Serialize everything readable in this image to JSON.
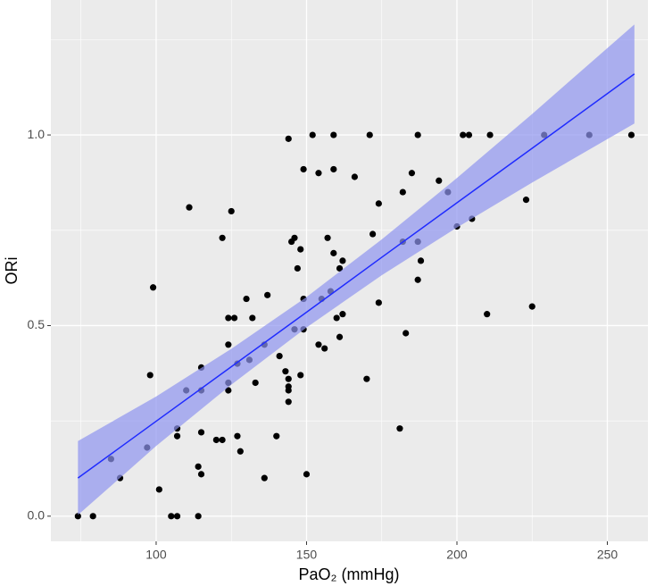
{
  "chart_data": {
    "type": "scatter",
    "x_label": "PaO₂ (mmHg)",
    "y_label": "ORi",
    "xlim": [
      65,
      263.5
    ],
    "ylim": [
      -0.066,
      1.354
    ],
    "xticks": [
      100,
      150,
      200,
      250
    ],
    "yticks": [
      {
        "value": 0,
        "label": "0.0"
      },
      {
        "value": 0.5,
        "label": "0.5"
      },
      {
        "value": 1,
        "label": "1.0"
      }
    ],
    "x_minor_grid": [
      75,
      125,
      175,
      225
    ],
    "y_minor_grid": [
      0.25,
      0.75,
      1.25
    ],
    "grid": true,
    "point_color": "#000000",
    "x": [
      74,
      79,
      85,
      88,
      98,
      99,
      97,
      101,
      105,
      107,
      107,
      107,
      110,
      111,
      114,
      114,
      115,
      115,
      115,
      115,
      120,
      122,
      122,
      125,
      124,
      126,
      124,
      124,
      124,
      127,
      127,
      128,
      130,
      131,
      132,
      133,
      136,
      136,
      137,
      140,
      141,
      143,
      144,
      144,
      144,
      144,
      144,
      145,
      146,
      146,
      147,
      148,
      149,
      148,
      149,
      149,
      150,
      152,
      154,
      154,
      155,
      156,
      157,
      158,
      159,
      159,
      159,
      160,
      161,
      161,
      162,
      162,
      166,
      170,
      171,
      172,
      174,
      174,
      181,
      182,
      182,
      183,
      185,
      187,
      187,
      187,
      188,
      194,
      197,
      200,
      202,
      204,
      205,
      210,
      211,
      223,
      225,
      229,
      244,
      258
    ],
    "values": [
      0,
      0,
      0.15,
      0.1,
      0.37,
      0.6,
      0.18,
      0.07,
      0,
      0,
      0.23,
      0.21,
      0.33,
      0.81,
      0.13,
      0,
      0.11,
      0.22,
      0.39,
      0.33,
      0.2,
      0.2,
      0.73,
      0.8,
      0.52,
      0.52,
      0.45,
      0.35,
      0.33,
      0.21,
      0.4,
      0.17,
      0.57,
      0.41,
      0.52,
      0.35,
      0.45,
      0.1,
      0.58,
      0.21,
      0.42,
      0.38,
      0.99,
      0.36,
      0.34,
      0.33,
      0.3,
      0.72,
      0.73,
      0.49,
      0.65,
      0.37,
      0.91,
      0.7,
      0.49,
      0.57,
      0.11,
      1.0,
      0.9,
      0.45,
      0.57,
      0.44,
      0.73,
      0.59,
      1.0,
      0.91,
      0.69,
      0.52,
      0.65,
      0.47,
      0.67,
      0.53,
      0.89,
      0.36,
      1.0,
      0.74,
      0.82,
      0.56,
      0.23,
      0.85,
      0.72,
      0.48,
      0.9,
      1.0,
      0.72,
      0.62,
      0.67,
      0.88,
      0.85,
      0.76,
      1.0,
      1.0,
      0.78,
      0.53,
      1.0,
      0.83,
      0.55,
      1.0,
      1.0,
      1.0
    ],
    "fit": {
      "color": "#1f2bff",
      "band_color": "#8f94f0",
      "x": [
        74,
        100,
        125,
        150,
        175,
        200,
        225,
        259
      ],
      "values": [
        0.1,
        0.249,
        0.392,
        0.535,
        0.679,
        0.822,
        0.965,
        1.16
      ],
      "lower": [
        0.003,
        0.184,
        0.345,
        0.495,
        0.632,
        0.757,
        0.875,
        1.03
      ],
      "upper": [
        0.197,
        0.314,
        0.439,
        0.575,
        0.726,
        0.887,
        1.055,
        1.29
      ]
    }
  }
}
